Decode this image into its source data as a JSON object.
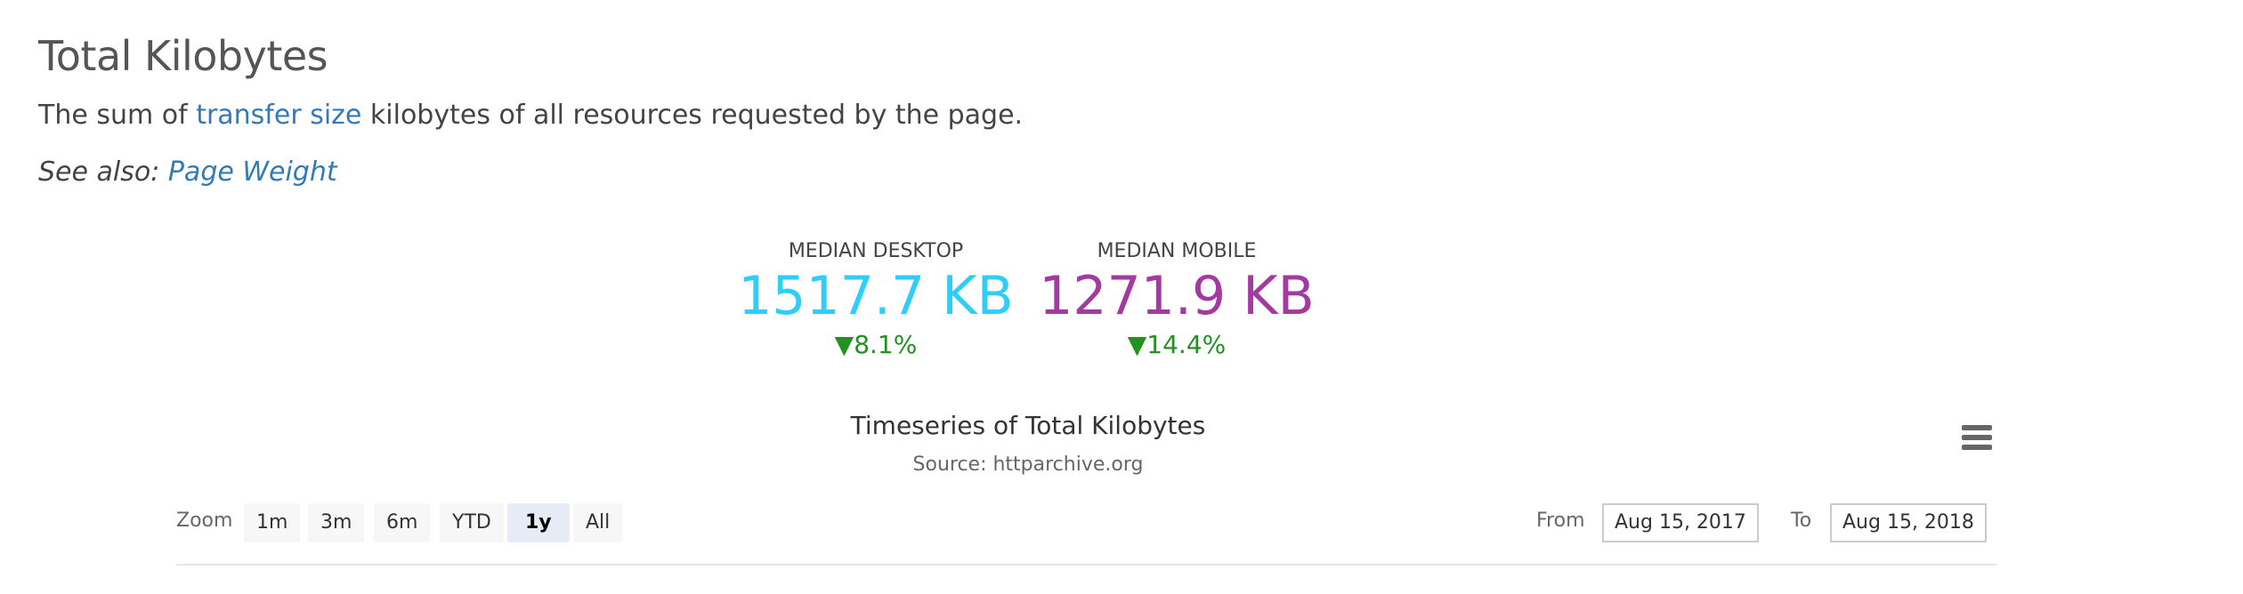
{
  "header": {
    "title": "Total Kilobytes",
    "description_prefix": "The sum of ",
    "description_link": "transfer size",
    "description_suffix": " kilobytes of all resources requested by the page.",
    "see_also_label": "See also: ",
    "see_also_link": "Page Weight"
  },
  "metrics": [
    {
      "label": "MEDIAN DESKTOP",
      "value": "1517.7 KB",
      "change": "8.1%",
      "direction": "down",
      "color": "#2fcdfb"
    },
    {
      "label": "MEDIAN MOBILE",
      "value": "1271.9 KB",
      "change": "14.4%",
      "direction": "down",
      "color": "#a23aa0"
    }
  ],
  "change_color": "#22911f",
  "change_icon": "triangle-down-icon",
  "chart": {
    "title": "Timeseries of Total Kilobytes",
    "source": "Source: httparchive.org",
    "menu_icon": "hamburger-menu-icon",
    "zoom_label": "Zoom",
    "zoom_buttons": [
      "1m",
      "3m",
      "6m",
      "YTD",
      "1y",
      "All"
    ],
    "zoom_selected": "1y",
    "from_label": "From",
    "from_value": "Aug 15, 2017",
    "to_label": "To",
    "to_value": "Aug 15, 2018"
  }
}
